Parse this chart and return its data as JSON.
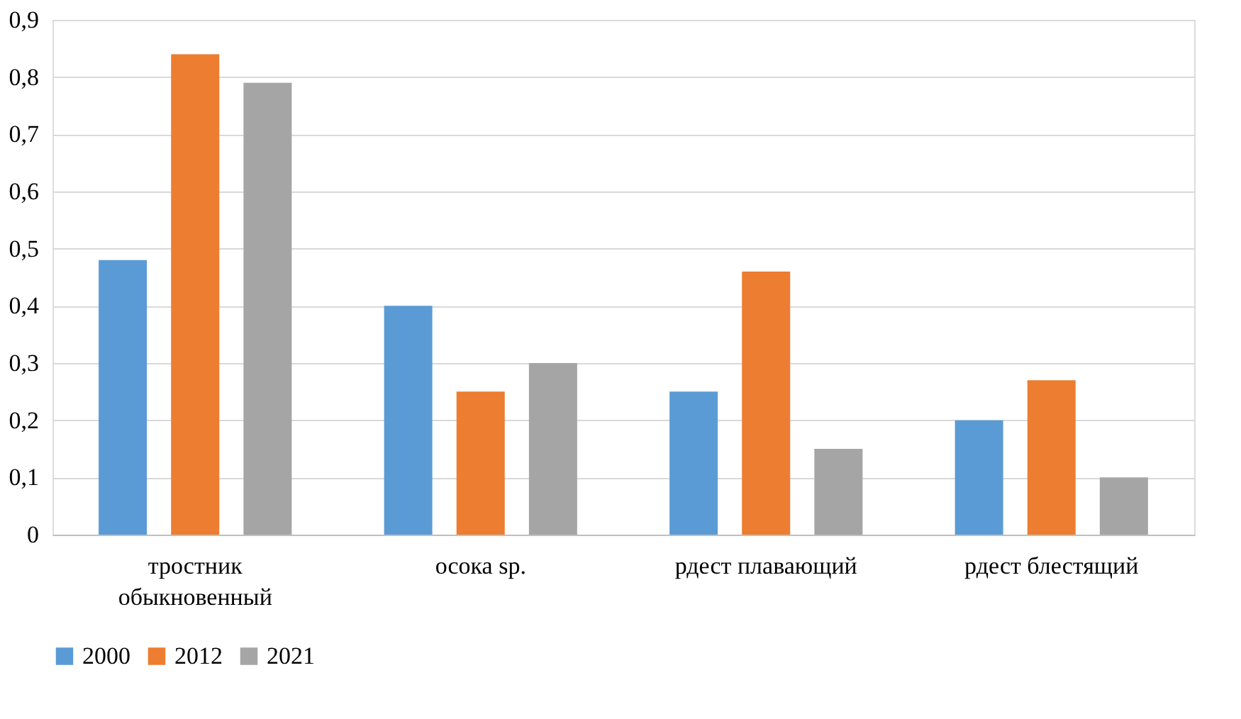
{
  "chart_data": {
    "type": "bar",
    "categories": [
      "тростник обыкновенный",
      "осока sp.",
      "рдест плавающий",
      "рдест блестящий"
    ],
    "series": [
      {
        "name": "2000",
        "color": "#5b9bd5",
        "values": [
          0.48,
          0.4,
          0.25,
          0.2
        ]
      },
      {
        "name": "2012",
        "color": "#ed7d31",
        "values": [
          0.84,
          0.25,
          0.46,
          0.27
        ]
      },
      {
        "name": "2021",
        "color": "#a5a5a5",
        "values": [
          0.79,
          0.3,
          0.15,
          0.1
        ]
      }
    ],
    "ylim": [
      0,
      0.9
    ],
    "yticks": [
      0,
      {
        "value": 0.1,
        "label": "0,1"
      },
      {
        "value": 0.2,
        "label": "0,2"
      },
      {
        "value": 0.3,
        "label": "0,3"
      },
      {
        "value": 0.4,
        "label": "0,4"
      },
      {
        "value": 0.5,
        "label": "0,5"
      },
      {
        "value": 0.6,
        "label": "0,6"
      },
      {
        "value": 0.7,
        "label": "0,7"
      },
      {
        "value": 0.8,
        "label": "0,8"
      },
      {
        "value": 0.9,
        "label": "0,9"
      }
    ],
    "grid": "y",
    "legend": "bottom"
  }
}
